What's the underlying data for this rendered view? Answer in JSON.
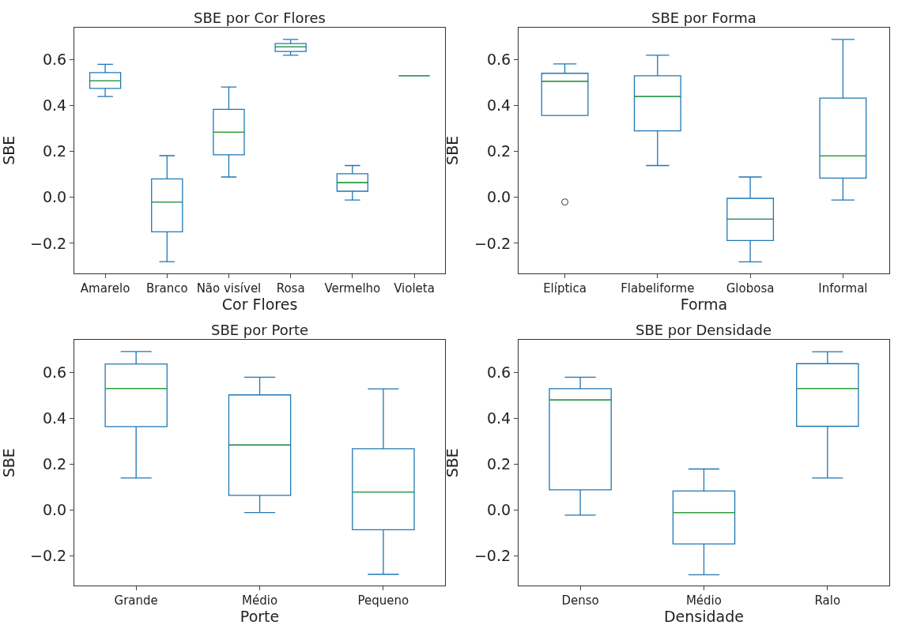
{
  "chart_data": [
    {
      "type": "box",
      "title": "SBE por Cor Flores",
      "xlabel": "Cor Flores",
      "ylabel": "SBE",
      "categories": [
        "Amarelo",
        "Branco",
        "Não visível",
        "Rosa",
        "Vermelho",
        "Violeta"
      ],
      "color": "#1f77b4",
      "ylim": [
        -0.33,
        0.74
      ],
      "yticks": [
        {
          "value": -0.2,
          "label": "−0.2"
        },
        {
          "value": 0,
          "label": "0.0"
        },
        {
          "value": 0.2,
          "label": "0.2"
        },
        {
          "value": 0.4,
          "label": "0.4"
        },
        {
          "value": 0.6,
          "label": "0.6"
        }
      ],
      "boxes": [
        {
          "low": 0.44,
          "q1": 0.475,
          "median": 0.508,
          "q3": 0.544,
          "high": 0.58
        },
        {
          "low": -0.28,
          "q1": -0.15,
          "median": -0.02,
          "q3": 0.081,
          "high": 0.182
        },
        {
          "low": 0.089,
          "q1": 0.186,
          "median": 0.284,
          "q3": 0.384,
          "high": 0.481
        },
        {
          "low": 0.62,
          "q1": 0.636,
          "median": 0.656,
          "q3": 0.671,
          "high": 0.689
        },
        {
          "low": -0.011,
          "q1": 0.027,
          "median": 0.064,
          "q3": 0.103,
          "high": 0.139
        },
        {
          "low": 0.53,
          "q1": 0.53,
          "median": 0.53,
          "q3": 0.53,
          "high": 0.53
        }
      ]
    },
    {
      "type": "box",
      "title": "SBE por Forma",
      "xlabel": "Forma",
      "ylabel": "SBE",
      "categories": [
        "Elíptica",
        "Flabeliforme",
        "Globosa",
        "Informal"
      ],
      "color": "#1f77b4",
      "ylim": [
        -0.33,
        0.74
      ],
      "yticks": [
        {
          "value": -0.2,
          "label": "−0.2"
        },
        {
          "value": 0,
          "label": "0.0"
        },
        {
          "value": 0.2,
          "label": "0.2"
        },
        {
          "value": 0.4,
          "label": "0.4"
        },
        {
          "value": 0.6,
          "label": "0.6"
        }
      ],
      "boxes": [
        {
          "low": 0.357,
          "q1": 0.357,
          "median": 0.506,
          "q3": 0.541,
          "high": 0.582,
          "outliers": [
            -0.02
          ]
        },
        {
          "low": 0.139,
          "q1": 0.29,
          "median": 0.44,
          "q3": 0.53,
          "high": 0.62
        },
        {
          "low": -0.281,
          "q1": -0.188,
          "median": -0.095,
          "q3": -0.004,
          "high": 0.089
        },
        {
          "low": -0.011,
          "q1": 0.084,
          "median": 0.181,
          "q3": 0.433,
          "high": 0.689
        }
      ]
    },
    {
      "type": "box",
      "title": "SBE por Porte",
      "xlabel": "Porte",
      "ylabel": "SBE",
      "categories": [
        "Grande",
        "Médio",
        "Pequeno"
      ],
      "color": "#1f77b4",
      "ylim": [
        -0.33,
        0.74
      ],
      "yticks": [
        {
          "value": -0.2,
          "label": "−0.2"
        },
        {
          "value": 0,
          "label": "0.0"
        },
        {
          "value": 0.2,
          "label": "0.2"
        },
        {
          "value": 0.4,
          "label": "0.4"
        },
        {
          "value": 0.6,
          "label": "0.6"
        }
      ],
      "boxes": [
        {
          "low": 0.139,
          "q1": 0.363,
          "median": 0.529,
          "q3": 0.636,
          "high": 0.69
        },
        {
          "low": -0.012,
          "q1": 0.063,
          "median": 0.283,
          "q3": 0.501,
          "high": 0.578
        },
        {
          "low": -0.281,
          "q1": -0.087,
          "median": 0.078,
          "q3": 0.266,
          "high": 0.527
        }
      ]
    },
    {
      "type": "box",
      "title": "SBE por Densidade",
      "xlabel": "Densidade",
      "ylabel": "SBE",
      "categories": [
        "Denso",
        "Médio",
        "Ralo"
      ],
      "color": "#1f77b4",
      "ylim": [
        -0.33,
        0.74
      ],
      "yticks": [
        {
          "value": -0.2,
          "label": "−0.2"
        },
        {
          "value": 0,
          "label": "0.0"
        },
        {
          "value": 0.2,
          "label": "0.2"
        },
        {
          "value": 0.4,
          "label": "0.4"
        },
        {
          "value": 0.6,
          "label": "0.6"
        }
      ],
      "boxes": [
        {
          "low": -0.023,
          "q1": 0.087,
          "median": 0.479,
          "q3": 0.528,
          "high": 0.578
        },
        {
          "low": -0.283,
          "q1": -0.149,
          "median": -0.012,
          "q3": 0.082,
          "high": 0.178
        },
        {
          "low": 0.139,
          "q1": 0.364,
          "median": 0.529,
          "q3": 0.637,
          "high": 0.689
        }
      ]
    }
  ]
}
